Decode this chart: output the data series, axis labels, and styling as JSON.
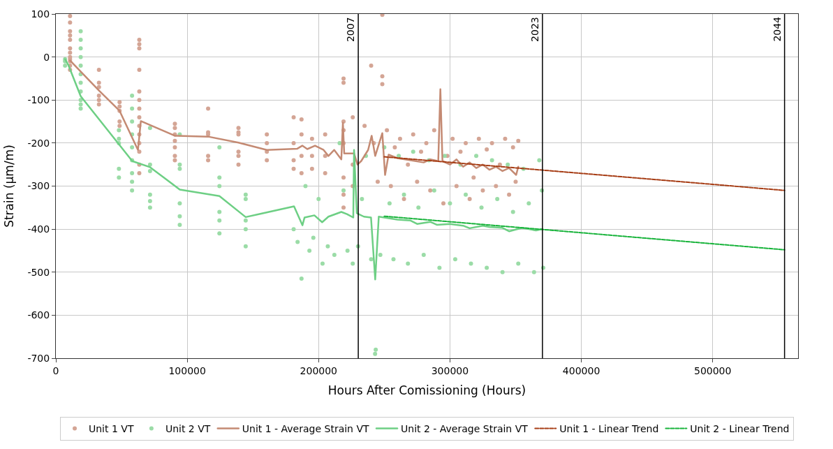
{
  "chart_data": {
    "type": "scatter",
    "xlabel": "Hours After Comissioning (Hours)",
    "ylabel": "Strain (µm/m)",
    "xlim": [
      0,
      565000
    ],
    "xticks": [
      0,
      100000,
      200000,
      300000,
      400000,
      500000
    ],
    "ylim": [
      -700,
      100
    ],
    "yticks": [
      -700,
      -600,
      -500,
      -400,
      -300,
      -200,
      -100,
      0,
      100
    ],
    "grid": true,
    "legend": "bottom",
    "ref_lines": [
      {
        "axis": "x",
        "value": 230200,
        "color": "#000000"
      },
      {
        "axis": "x",
        "value": 370400,
        "color": "#000000"
      },
      {
        "axis": "x",
        "value": 554700,
        "color": "#000000"
      }
    ],
    "annotations": [
      {
        "text": "2007",
        "x": 230200,
        "y": 100
      },
      {
        "text": "2023",
        "x": 370400,
        "y": 100
      },
      {
        "text": "2044",
        "x": 554700,
        "y": 100
      }
    ],
    "series": [
      {
        "name": "Unit 1 VT",
        "marker": "circle",
        "color": "#d4a595",
        "x": [
          10800,
          10800,
          10800,
          10800,
          10800,
          10800,
          10800,
          10800,
          10800,
          10800,
          10800,
          10800,
          32800,
          32800,
          32800,
          32800,
          32800,
          32800,
          48500,
          48500,
          48500,
          48500,
          48500,
          63500,
          63500,
          63500,
          63500,
          63500,
          63500,
          63500,
          63500,
          63500,
          63500,
          63500,
          63500,
          63500,
          63500,
          90600,
          90600,
          90600,
          90600,
          90600,
          90600,
          90600,
          115900,
          115900,
          115900,
          115900,
          115900,
          139000,
          139000,
          139000,
          139000,
          139000,
          139000,
          160600,
          160600,
          160600,
          160600,
          181000,
          181000,
          181000,
          181000,
          187000,
          187000,
          187000,
          187000,
          195000,
          195000,
          195000,
          205000,
          205000,
          205000,
          219000,
          219000,
          219000,
          219000,
          219000,
          219000,
          219000,
          219000,
          226000,
          226000,
          226000,
          235000,
          240000,
          242000,
          245000,
          248500,
          248500,
          248500,
          252000,
          255000,
          258000,
          262000,
          265000,
          268000,
          272000,
          275000,
          278000,
          282000,
          285000,
          288000,
          295000,
          298000,
          302000,
          305000,
          308000,
          312000,
          315000,
          318000,
          322000,
          325000,
          328000,
          332000,
          335000,
          338000,
          342000,
          345000,
          348000,
          350000,
          352000
        ],
        "values": [
          95,
          80,
          60,
          40,
          20,
          10,
          0,
          -10,
          -20,
          -30,
          50,
          -5,
          -30,
          -60,
          -70,
          -90,
          -100,
          -110,
          -105,
          -115,
          -125,
          -150,
          -160,
          40,
          30,
          20,
          -30,
          -80,
          -100,
          -120,
          -140,
          -160,
          -180,
          -200,
          -220,
          -250,
          -270,
          -155,
          -165,
          -180,
          -195,
          -210,
          -230,
          -240,
          -120,
          -175,
          -180,
          -230,
          -240,
          -165,
          -175,
          -180,
          -220,
          -230,
          -250,
          -180,
          -200,
          -220,
          -240,
          -140,
          -200,
          -240,
          -260,
          -145,
          -180,
          -230,
          -270,
          -190,
          -230,
          -260,
          -180,
          -230,
          -270,
          -50,
          -60,
          -150,
          -170,
          -200,
          -280,
          -320,
          -350,
          -140,
          -250,
          -300,
          -160,
          -20,
          -200,
          -290,
          98,
          -45,
          -63,
          -170,
          -300,
          -210,
          -190,
          -330,
          -250,
          -180,
          -290,
          -220,
          -200,
          -310,
          -170,
          -340,
          -230,
          -190,
          -300,
          -220,
          -200,
          -330,
          -280,
          -190,
          -310,
          -215,
          -200,
          -300,
          -250,
          -190,
          -320,
          -210,
          -290,
          -195
        ]
      },
      {
        "name": "Unit 2 VT",
        "marker": "circle",
        "color": "#9bdca7",
        "x": [
          7000,
          7000,
          7000,
          18900,
          18900,
          18900,
          18900,
          18900,
          18900,
          18900,
          18900,
          18900,
          18900,
          18900,
          48000,
          48000,
          48000,
          48000,
          48000,
          58000,
          58000,
          58000,
          58000,
          58000,
          58000,
          58000,
          58000,
          58000,
          71700,
          71700,
          71700,
          71700,
          71700,
          71700,
          94300,
          94300,
          94300,
          94300,
          94300,
          94300,
          124500,
          124500,
          124500,
          124500,
          124500,
          124500,
          144500,
          144500,
          144500,
          144500,
          144500,
          181000,
          184000,
          187000,
          190000,
          193000,
          196000,
          200000,
          203000,
          207000,
          212000,
          216000,
          219000,
          222000,
          226000,
          230000,
          233000,
          236000,
          240000,
          243000,
          243500,
          247000,
          250000,
          254000,
          257000,
          261000,
          265000,
          268000,
          272000,
          276000,
          280000,
          284000,
          288000,
          292000,
          296000,
          300000,
          304000,
          308000,
          312000,
          316000,
          320000,
          324000,
          328000,
          332000,
          336000,
          340000,
          344000,
          348000,
          352000,
          356000,
          360000,
          364000,
          368000,
          370000,
          371000
        ],
        "values": [
          -5,
          -10,
          -20,
          60,
          40,
          20,
          0,
          -20,
          -40,
          -60,
          -80,
          -100,
          -110,
          -120,
          -170,
          -190,
          -200,
          -260,
          -280,
          -90,
          -120,
          -150,
          -180,
          -210,
          -240,
          -270,
          -290,
          -310,
          -165,
          -250,
          -265,
          -320,
          -335,
          -350,
          -180,
          -250,
          -260,
          -340,
          -370,
          -390,
          -210,
          -280,
          -300,
          -360,
          -380,
          -410,
          -320,
          -330,
          -380,
          -400,
          -440,
          -400,
          -430,
          -515,
          -300,
          -450,
          -420,
          -330,
          -480,
          -440,
          -460,
          -200,
          -310,
          -450,
          -480,
          -440,
          -330,
          -230,
          -470,
          -690,
          -680,
          -460,
          -210,
          -340,
          -470,
          -230,
          -320,
          -480,
          -220,
          -350,
          -460,
          -240,
          -310,
          -490,
          -230,
          -340,
          -470,
          -250,
          -320,
          -480,
          -230,
          -350,
          -490,
          -240,
          -330,
          -500,
          -250,
          -360,
          -480,
          -260,
          -340,
          -500,
          -240,
          -310,
          -490
        ]
      },
      {
        "name": "Unit 1 - Average Strain VT",
        "type": "line",
        "line_style": "solid",
        "color": "#c48a73",
        "x": [
          10800,
          32800,
          48500,
          62500,
          64700,
          90600,
          115900,
          139000,
          160600,
          183800,
          187600,
          191400,
          197300,
          203800,
          207500,
          211900,
          217300,
          218500,
          219500,
          227000,
          229600,
          232400,
          237700,
          240400,
          243100,
          248500,
          250600,
          253300,
          260000,
          270000,
          280000,
          285000,
          291100,
          292700,
          294300,
          300000,
          305000,
          310000,
          315000,
          320000,
          325000,
          330000,
          335000,
          340000,
          345000,
          350400,
          352000
        ],
        "values": [
          -8,
          -78,
          -125,
          -216,
          -149,
          -183,
          -185,
          -199,
          -216,
          -213,
          -206,
          -214,
          -206,
          -216,
          -230,
          -216,
          -238,
          -153,
          -224,
          -224,
          -250,
          -242,
          -216,
          -183,
          -230,
          -177,
          -274,
          -227,
          -235,
          -240,
          -245,
          -238,
          -242,
          -75,
          -242,
          -250,
          -238,
          -255,
          -245,
          -258,
          -250,
          -262,
          -255,
          -265,
          -258,
          -274,
          -255
        ]
      },
      {
        "name": "Unit 2 - Average Strain VT",
        "type": "line",
        "line_style": "solid",
        "color": "#6dcf84",
        "x": [
          7000,
          9700,
          18900,
          58200,
          71700,
          94300,
          124500,
          144500,
          155000,
          181300,
          187700,
          189300,
          196800,
          202700,
          207500,
          217300,
          221600,
          226400,
          227000,
          229100,
          234500,
          239900,
          243100,
          245800,
          260000,
          270000,
          275000,
          285000,
          290000,
          300000,
          310000,
          315000,
          325000,
          330000,
          340000,
          345000,
          355000,
          360000,
          365500,
          370000
        ],
        "values": [
          -5,
          -20,
          -91,
          -242,
          -256,
          -308,
          -323,
          -372,
          -365,
          -347,
          -391,
          -373,
          -368,
          -384,
          -371,
          -360,
          -365,
          -373,
          -216,
          -363,
          -371,
          -373,
          -517,
          -371,
          -378,
          -380,
          -388,
          -383,
          -390,
          -388,
          -392,
          -398,
          -392,
          -395,
          -397,
          -405,
          -397,
          -400,
          -403,
          -400
        ]
      },
      {
        "name": "Unit 1 - Linear Trend",
        "type": "line",
        "line_style": "dashed",
        "color": "#a63c14",
        "x": [
          250000,
          554700
        ],
        "values": [
          -232,
          -310
        ]
      },
      {
        "name": "Unit 2 - Linear Trend",
        "type": "line",
        "line_style": "dashed",
        "color": "#17b33a",
        "x": [
          250000,
          554700
        ],
        "values": [
          -370,
          -448
        ]
      }
    ]
  }
}
